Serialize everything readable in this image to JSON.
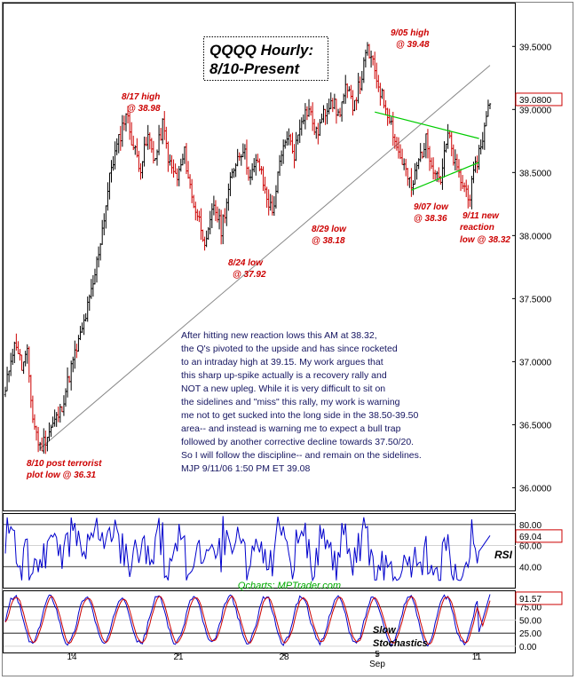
{
  "chart_data": {
    "type": "candlestick",
    "title_line1": "QQQQ Hourly:",
    "title_line2": "8/10-Present",
    "price_axis_ticks": [
      "39.5000",
      "39.0000",
      "38.5000",
      "38.0000",
      "37.5000",
      "37.0000",
      "36.5000",
      "36.0000"
    ],
    "price_tick_values": [
      39.5,
      39.0,
      38.5,
      38.0,
      37.5,
      37.0,
      36.5,
      36.0
    ],
    "ylim": [
      35.82,
      39.84
    ],
    "last_price_label": "39.0800",
    "last_price": 39.08,
    "x_tick_labels": [
      "14",
      "21",
      "28",
      "Sep",
      "5",
      "11"
    ],
    "annotations": [
      {
        "line1": "8/17 high",
        "line2": "@ 38.98"
      },
      {
        "line1": "9/05 high",
        "line2": "@ 39.48"
      },
      {
        "line1": "8/29 low",
        "line2": "@ 38.18"
      },
      {
        "line1": "8/24 low",
        "line2": "@ 37.92"
      },
      {
        "line1": "9/07 low",
        "line2": "@ 38.36"
      },
      {
        "line1": "9/11 new",
        "line2": "reaction",
        "line3": "low @ 38.32"
      },
      {
        "line1": "8/10 post terrorist",
        "line2": "plot low @ 36.31"
      }
    ],
    "commentary": [
      "After hitting new reaction lows this AM at 38.32,",
      "the Q's pivoted to the upside and has since rocketed",
      "to an intraday high at 39.15. My work argues that",
      "this sharp up-spike actually is a recovery rally and",
      "NOT a new upleg. While it is very difficult to sit on",
      "the sidelines and \"miss\" this rally, my work is warning",
      "me not to get sucked into the long side in the 38.50-39.50",
      "area-- and instead is warning me to expect a bull trap",
      "followed by another corrective decline towards 37.50/20.",
      "So I will follow the discipline-- and remain on the sidelines.",
      "MJP 9/11/06  1:50 PM ET  39.08"
    ],
    "key_points": [
      {
        "date": "8/10",
        "value": 36.31
      },
      {
        "date": "8/17",
        "value": 38.98
      },
      {
        "date": "8/24",
        "value": 37.92
      },
      {
        "date": "8/29",
        "value": 38.18
      },
      {
        "date": "9/05",
        "value": 39.48
      },
      {
        "date": "9/07",
        "value": 38.36
      },
      {
        "date": "9/11",
        "value": 38.32
      }
    ],
    "rsi": {
      "label": "RSI",
      "ticks": [
        "80.00",
        "60.00",
        "40.00"
      ],
      "tick_values": [
        80,
        60,
        40
      ],
      "last_value_label": "69.04",
      "last_value": 69.04
    },
    "stochastics": {
      "label_line1": "Slow",
      "label_line2": "Stochastics",
      "ticks": [
        "75.00",
        "50.00",
        "25.00",
        "0.00"
      ],
      "tick_values": [
        75,
        50,
        25,
        0
      ],
      "last_value_label": "91.57",
      "last_value": 91.57
    },
    "watermark": "Qcharts: MPTrader.com",
    "colors": {
      "up": "#000000",
      "down": "#cc0000",
      "rsi": "#0000cc",
      "stoch_k": "#0000cc",
      "stoch_d": "#cc0000",
      "trend": "#888888",
      "wedge": "#00cc00",
      "last_box": "#cc0000"
    }
  }
}
